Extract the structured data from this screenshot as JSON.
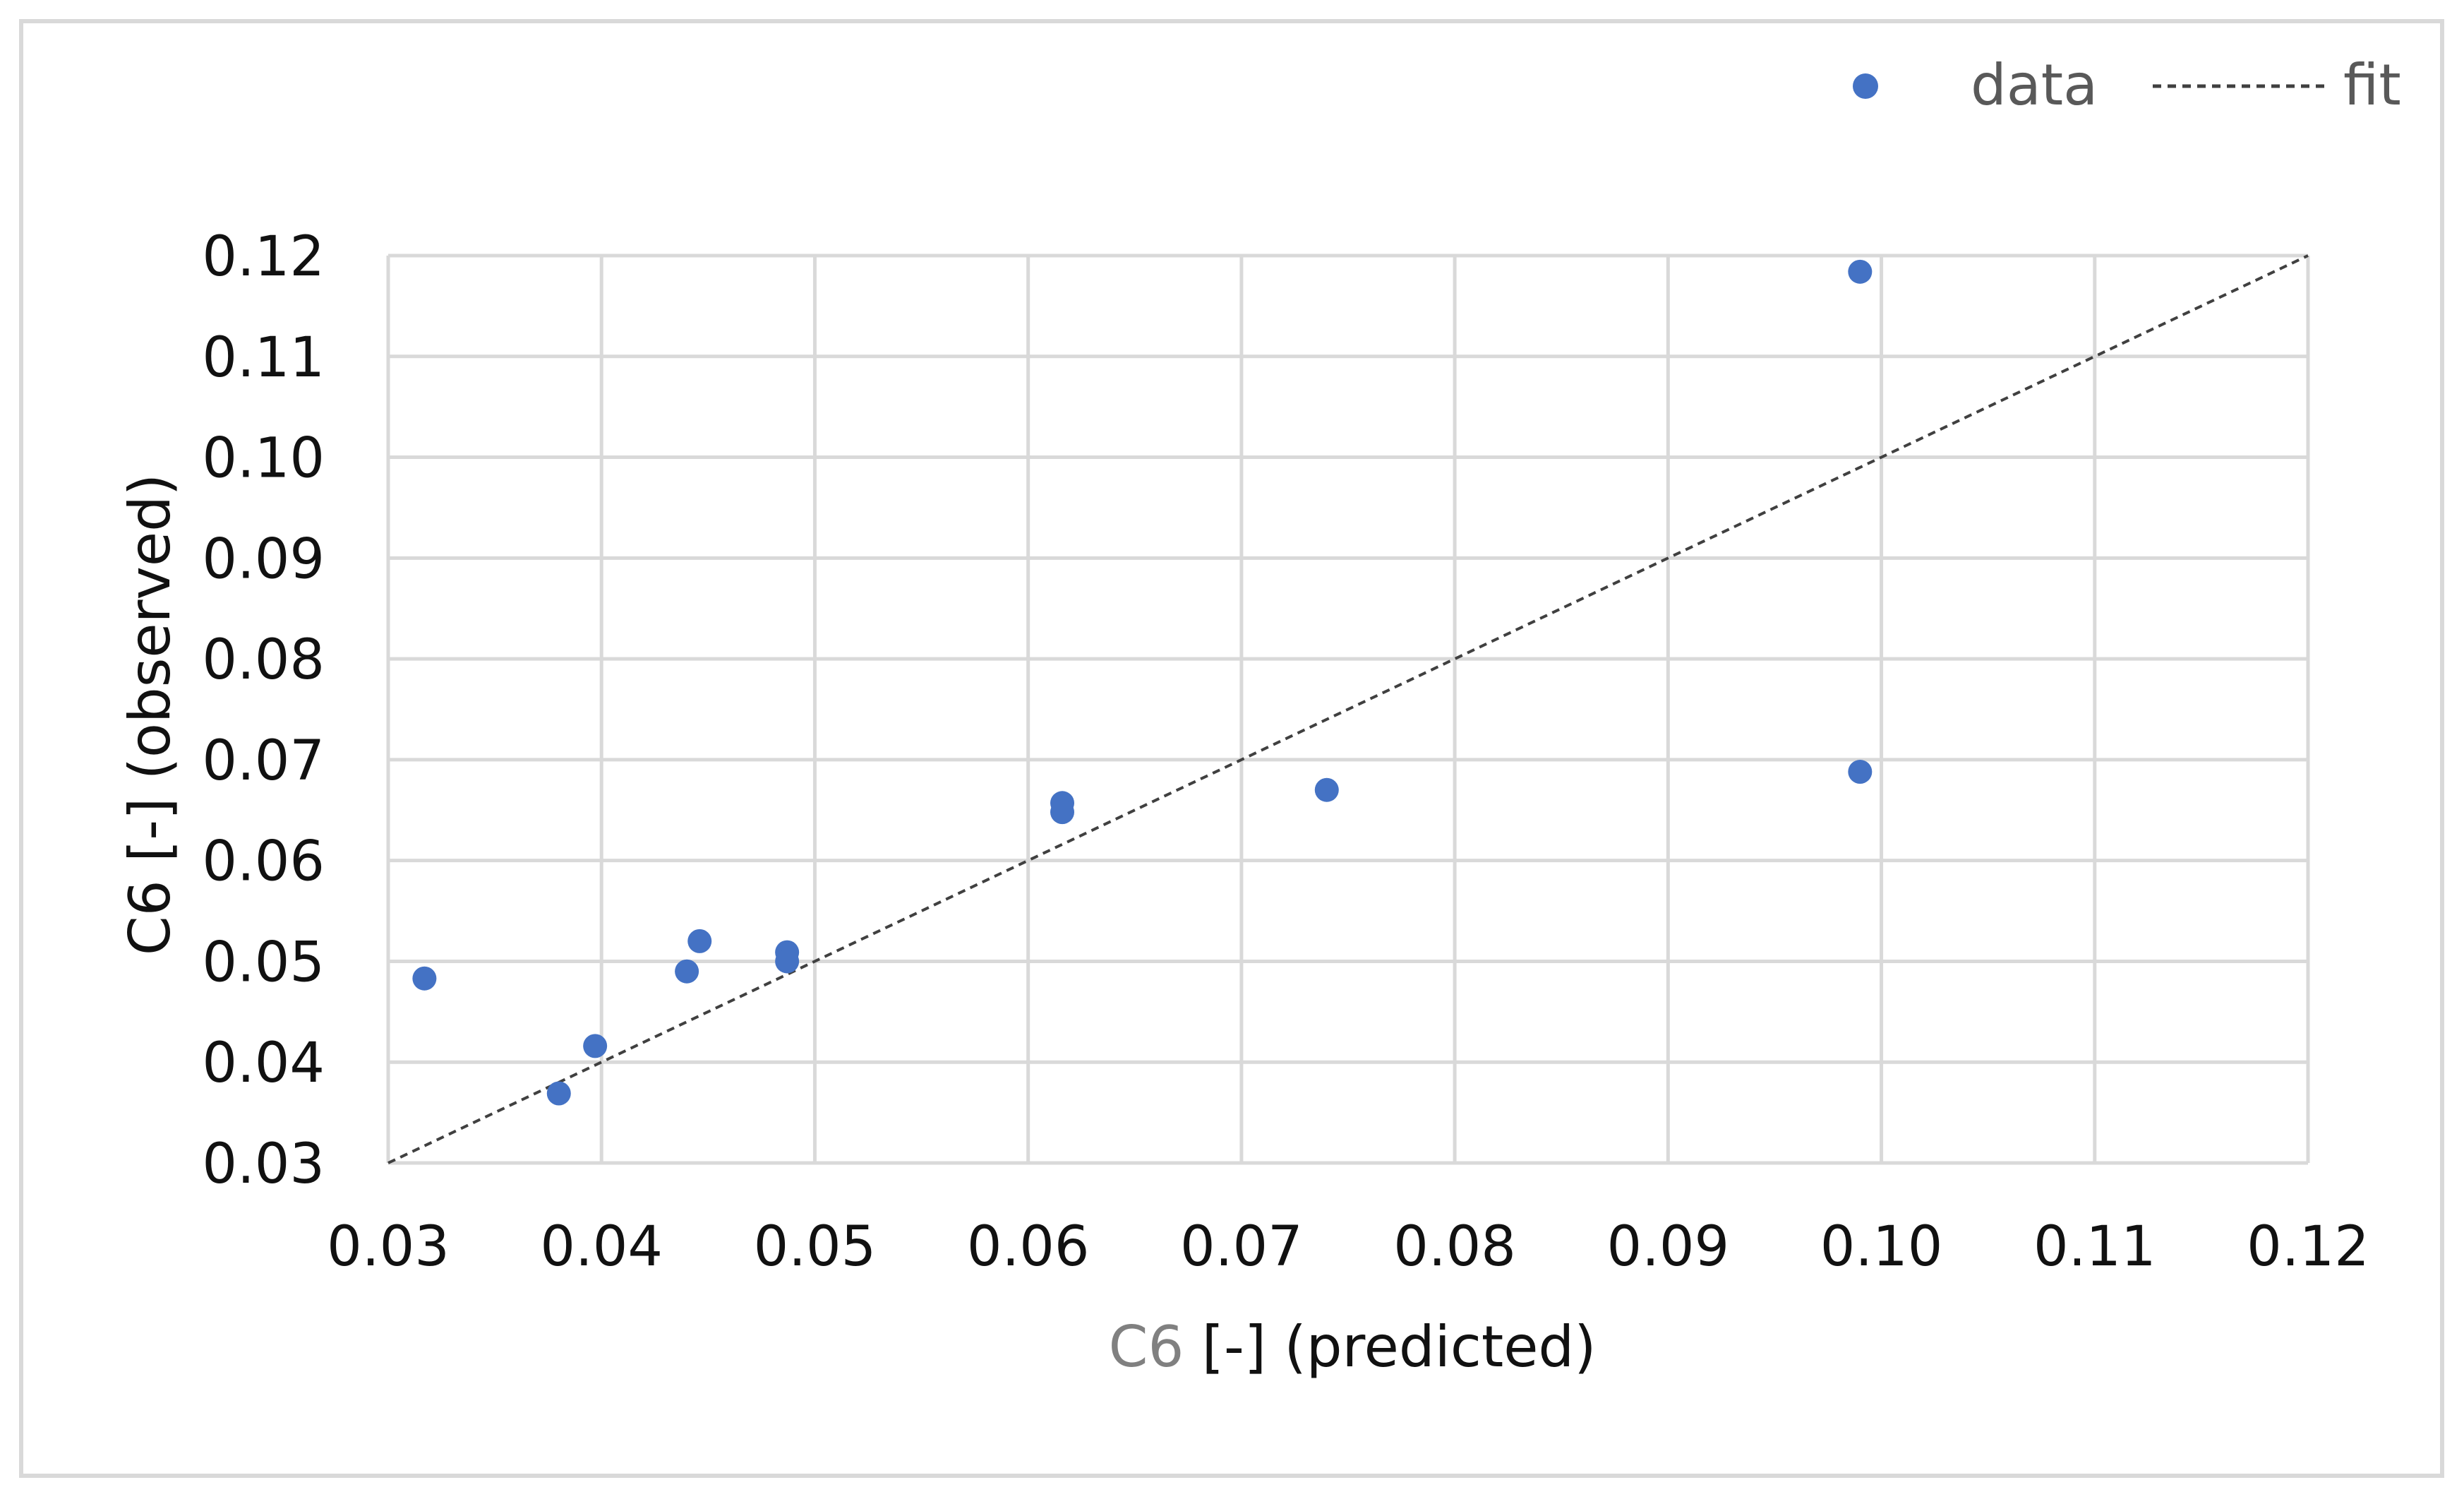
{
  "chart_data": {
    "type": "scatter",
    "title": "",
    "xlabel": "C6 [-] (predicted)",
    "ylabel": "C6 [-] (observed)",
    "xlim": [
      0.03,
      0.12
    ],
    "ylim": [
      0.03,
      0.12
    ],
    "x_ticks": [
      "0.03",
      "0.04",
      "0.05",
      "0.06",
      "0.07",
      "0.08",
      "0.09",
      "0.10",
      "0.11",
      "0.12"
    ],
    "y_ticks": [
      "0.03",
      "0.04",
      "0.05",
      "0.06",
      "0.07",
      "0.08",
      "0.09",
      "0.10",
      "0.11",
      "0.12"
    ],
    "grid": true,
    "legend_position": "top-right",
    "series": [
      {
        "name": "data",
        "kind": "markers",
        "color": "#4472C4",
        "points": [
          {
            "x": 0.0317,
            "y": 0.0483
          },
          {
            "x": 0.038,
            "y": 0.0369
          },
          {
            "x": 0.0397,
            "y": 0.0416
          },
          {
            "x": 0.044,
            "y": 0.049
          },
          {
            "x": 0.0446,
            "y": 0.052
          },
          {
            "x": 0.0487,
            "y": 0.0509
          },
          {
            "x": 0.0487,
            "y": 0.05
          },
          {
            "x": 0.0616,
            "y": 0.0657
          },
          {
            "x": 0.0616,
            "y": 0.0648
          },
          {
            "x": 0.074,
            "y": 0.067
          },
          {
            "x": 0.099,
            "y": 0.1184
          },
          {
            "x": 0.099,
            "y": 0.0688
          }
        ]
      },
      {
        "name": "fit",
        "kind": "dashed-line",
        "color": "#404040",
        "points": [
          {
            "x": 0.03,
            "y": 0.03
          },
          {
            "x": 0.12,
            "y": 0.12
          }
        ]
      }
    ]
  }
}
